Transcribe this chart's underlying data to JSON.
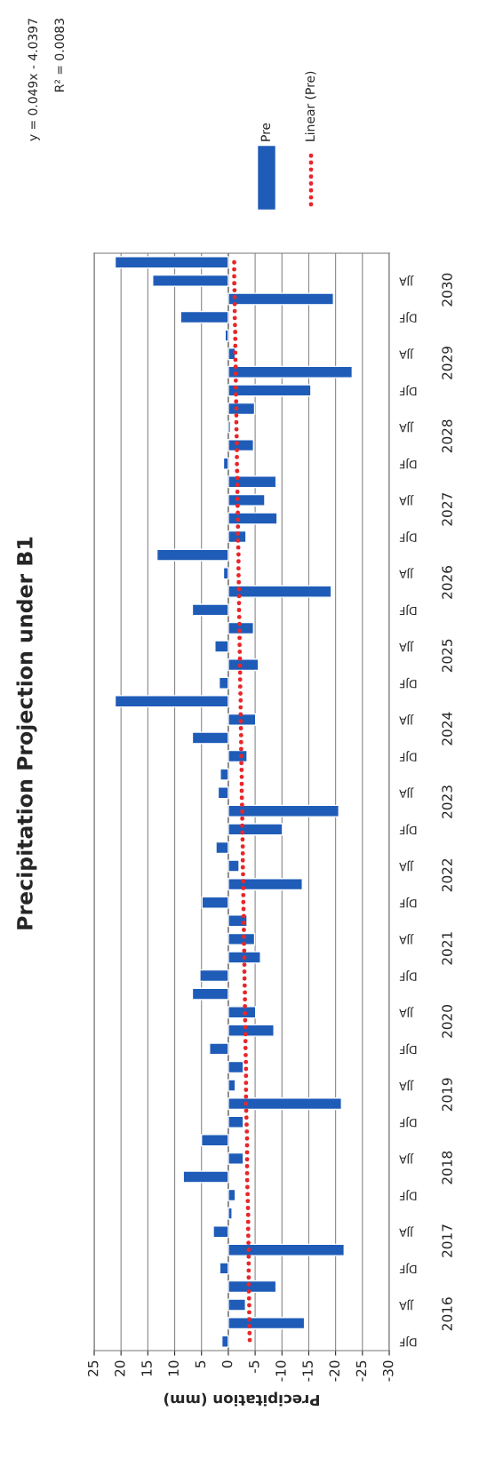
{
  "chart_data": {
    "type": "bar",
    "orientation": "horizontal",
    "title": "Precipitation Projection under B1",
    "xlabel": "Precipitation (mm)",
    "categories": [
      null,
      "JJA",
      null,
      "DJF",
      null,
      "JJA",
      null,
      "DJF",
      null,
      "JJA",
      null,
      "DJF",
      null,
      "JJA",
      null,
      "DJF",
      null,
      "JJA",
      null,
      "DJF",
      null,
      "JJA",
      null,
      "DJF",
      null,
      "JJA",
      null,
      "DJF",
      null,
      "JJA",
      null,
      "DJF",
      null,
      "JJA",
      null,
      "DJF",
      null,
      "JJA",
      null,
      "DJF",
      null,
      "JJA",
      null,
      "DJF",
      null,
      "JJA",
      null,
      "DJF",
      null,
      "JJA",
      null,
      "DJF",
      null,
      "JJA",
      null,
      "DJF",
      null,
      "JJA",
      null,
      "DJF"
    ],
    "series": [
      {
        "name": "Pre",
        "color": "#1f5cb8",
        "values": [
          21.1,
          14.1,
          -19.6,
          8.9,
          0.6,
          -1.3,
          -23.1,
          -15.4,
          -4.9,
          -0.4,
          -4.7,
          0.9,
          -8.9,
          -6.8,
          -9.1,
          -3.3,
          13.3,
          0.9,
          -19.2,
          6.7,
          -4.7,
          2.5,
          -5.6,
          1.7,
          21.1,
          -5.1,
          6.7,
          -3.5,
          1.5,
          1.9,
          -20.6,
          -10.1,
          2.3,
          -2.0,
          -13.8,
          4.9,
          -3.5,
          -4.9,
          -6.0,
          5.3,
          6.7,
          -5.1,
          -8.5,
          3.5,
          -2.8,
          -1.3,
          -21.1,
          -2.8,
          5.0,
          -2.8,
          8.4,
          -1.3,
          -0.7,
          2.8,
          -21.6,
          1.6,
          -8.9,
          -3.2,
          -14.2,
          1.2
        ]
      },
      {
        "name": "Linear (Pre)",
        "type": "line",
        "color": "#e8262a",
        "line_style": "dotted",
        "values": [
          -1.1,
          -1.1,
          -1.2,
          -1.2,
          -1.3,
          -1.3,
          -1.4,
          -1.4,
          -1.5,
          -1.5,
          -1.6,
          -1.6,
          -1.7,
          -1.7,
          -1.8,
          -1.8,
          -1.9,
          -1.9,
          -2.0,
          -2.0,
          -2.1,
          -2.1,
          -2.2,
          -2.2,
          -2.3,
          -2.3,
          -2.4,
          -2.4,
          -2.5,
          -2.5,
          -2.6,
          -2.6,
          -2.7,
          -2.7,
          -2.8,
          -2.8,
          -2.9,
          -2.9,
          -3.0,
          -3.0,
          -3.1,
          -3.1,
          -3.2,
          -3.2,
          -3.3,
          -3.3,
          -3.3,
          -3.4,
          -3.5,
          -3.5,
          -3.5,
          -3.6,
          -3.7,
          -3.7,
          -3.8,
          -3.8,
          -3.8,
          -3.9,
          -3.9,
          -4.0
        ]
      }
    ],
    "xlim": [
      25,
      -30
    ],
    "xticks": [
      25,
      20,
      15,
      10,
      5,
      0,
      -5,
      -10,
      -15,
      -20,
      -25,
      -30
    ],
    "grid": "x",
    "legend": "top",
    "annotations": [
      "2030",
      "2029",
      "2028",
      "2027",
      "2026",
      "2025",
      "2024",
      "2023",
      "2022",
      "2021",
      "2020",
      "2019",
      "2018",
      "2017",
      "2016",
      "y = 0.049x - 4.0397",
      "R² = 0.0083"
    ]
  }
}
